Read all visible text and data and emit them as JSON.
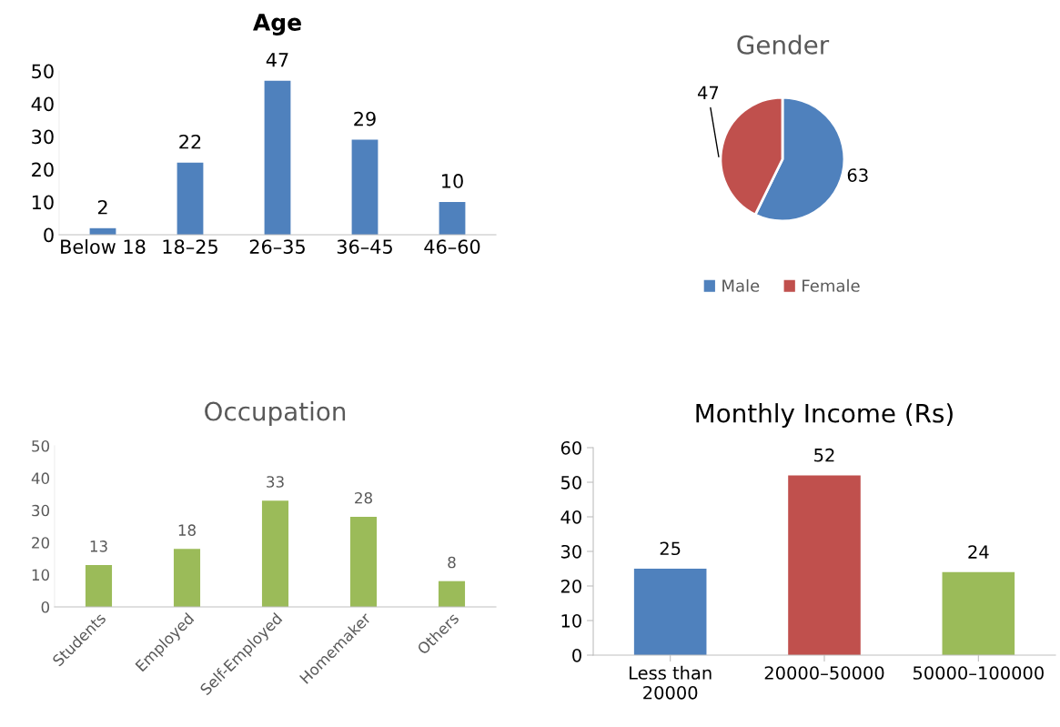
{
  "chart_data": [
    {
      "type": "bar",
      "title": "Age",
      "categories": [
        "Below 18",
        "18–25",
        "26–35",
        "36–45",
        "46–60"
      ],
      "values": [
        2,
        22,
        47,
        29,
        10
      ],
      "color": "#4f81bd",
      "ylim": [
        0,
        50
      ],
      "yticks": [
        0,
        10,
        20,
        30,
        40,
        50
      ],
      "data_labels": true,
      "grid": false,
      "legend": false
    },
    {
      "type": "pie",
      "title": "Gender",
      "categories": [
        "Male",
        "Female"
      ],
      "values": [
        63,
        47
      ],
      "colors": [
        "#4f81bd",
        "#c0504d"
      ],
      "data_labels": true,
      "legend": "bottom"
    },
    {
      "type": "bar",
      "title": "Occupation",
      "categories": [
        "Students",
        "Employed",
        "Self-Employed",
        "Homemaker",
        "Others"
      ],
      "values": [
        13,
        18,
        33,
        28,
        8
      ],
      "color": "#9bbb59",
      "ylim": [
        0,
        50
      ],
      "yticks": [
        0,
        10,
        20,
        30,
        40,
        50
      ],
      "data_labels": true,
      "grid": false,
      "legend": false
    },
    {
      "type": "bar",
      "title": "Monthly Income (Rs)",
      "categories": [
        "Less than\n20000",
        "20000–50000",
        "50000–100000"
      ],
      "values": [
        25,
        52,
        24
      ],
      "colors": [
        "#4f81bd",
        "#c0504d",
        "#9bbb59"
      ],
      "ylim": [
        0,
        60
      ],
      "yticks": [
        0,
        10,
        20,
        30,
        40,
        50,
        60
      ],
      "data_labels": true,
      "grid": false,
      "legend": false
    }
  ]
}
